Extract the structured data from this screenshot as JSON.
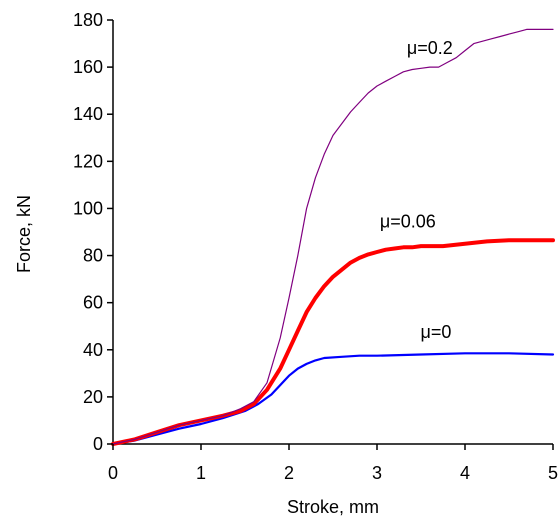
{
  "chart_data": {
    "type": "line",
    "title": "",
    "xlabel": "Stroke, mm",
    "ylabel": "Force, kN",
    "xlim": [
      0,
      5
    ],
    "ylim": [
      0,
      180
    ],
    "x_ticks": [
      0,
      1,
      2,
      3,
      4,
      5
    ],
    "y_ticks": [
      0,
      20,
      40,
      60,
      80,
      100,
      120,
      140,
      160,
      180
    ],
    "grid": false,
    "legend": "none",
    "series": [
      {
        "label": "μ=0.2",
        "color": "#800080",
        "line_weight": "thin",
        "x": [
          0,
          0.25,
          0.5,
          0.75,
          1.0,
          1.25,
          1.45,
          1.6,
          1.75,
          1.9,
          2.0,
          2.1,
          2.2,
          2.3,
          2.4,
          2.5,
          2.6,
          2.7,
          2.8,
          2.9,
          3.0,
          3.1,
          3.2,
          3.3,
          3.4,
          3.5,
          3.6,
          3.7,
          3.8,
          3.9,
          4.0,
          4.1,
          4.2,
          4.3,
          4.4,
          4.5,
          4.6,
          4.7,
          4.8,
          4.9,
          5.0
        ],
        "y": [
          0,
          2,
          5,
          8,
          10,
          12,
          15,
          18,
          26,
          45,
          62,
          80,
          100,
          113,
          123,
          131,
          136,
          141,
          145,
          149,
          152,
          154,
          156,
          158,
          159,
          159.5,
          160,
          160,
          162,
          164,
          167,
          170,
          171,
          172,
          173,
          174,
          175,
          176,
          176,
          176,
          176
        ]
      },
      {
        "label": "μ=0.06",
        "color": "#ff0000",
        "line_weight": "thick",
        "x": [
          0,
          0.25,
          0.5,
          0.75,
          1.0,
          1.25,
          1.45,
          1.6,
          1.75,
          1.9,
          2.0,
          2.1,
          2.2,
          2.3,
          2.4,
          2.5,
          2.6,
          2.7,
          2.8,
          2.9,
          3.0,
          3.1,
          3.2,
          3.3,
          3.4,
          3.5,
          3.75,
          4.0,
          4.25,
          4.5,
          4.75,
          5.0
        ],
        "y": [
          0,
          2,
          5,
          8,
          10,
          12,
          14,
          17,
          23,
          32,
          40,
          48,
          56,
          62,
          67,
          71,
          74,
          77,
          79,
          80.5,
          81.5,
          82.5,
          83,
          83.5,
          83.5,
          84,
          84,
          85,
          86,
          86.5,
          86.5,
          86.5
        ]
      },
      {
        "label": "μ=0",
        "color": "#0000ff",
        "line_weight": "medium",
        "x": [
          0,
          0.25,
          0.5,
          0.75,
          1.0,
          1.25,
          1.5,
          1.65,
          1.8,
          1.9,
          2.0,
          2.1,
          2.2,
          2.3,
          2.4,
          2.6,
          2.8,
          3.0,
          3.5,
          4.0,
          4.5,
          5.0
        ],
        "y": [
          0,
          1.5,
          4,
          6.5,
          8.5,
          11,
          14,
          17,
          21,
          25,
          29,
          32,
          34,
          35.5,
          36.5,
          37,
          37.5,
          37.5,
          38,
          38.5,
          38.5,
          38
        ]
      }
    ]
  }
}
